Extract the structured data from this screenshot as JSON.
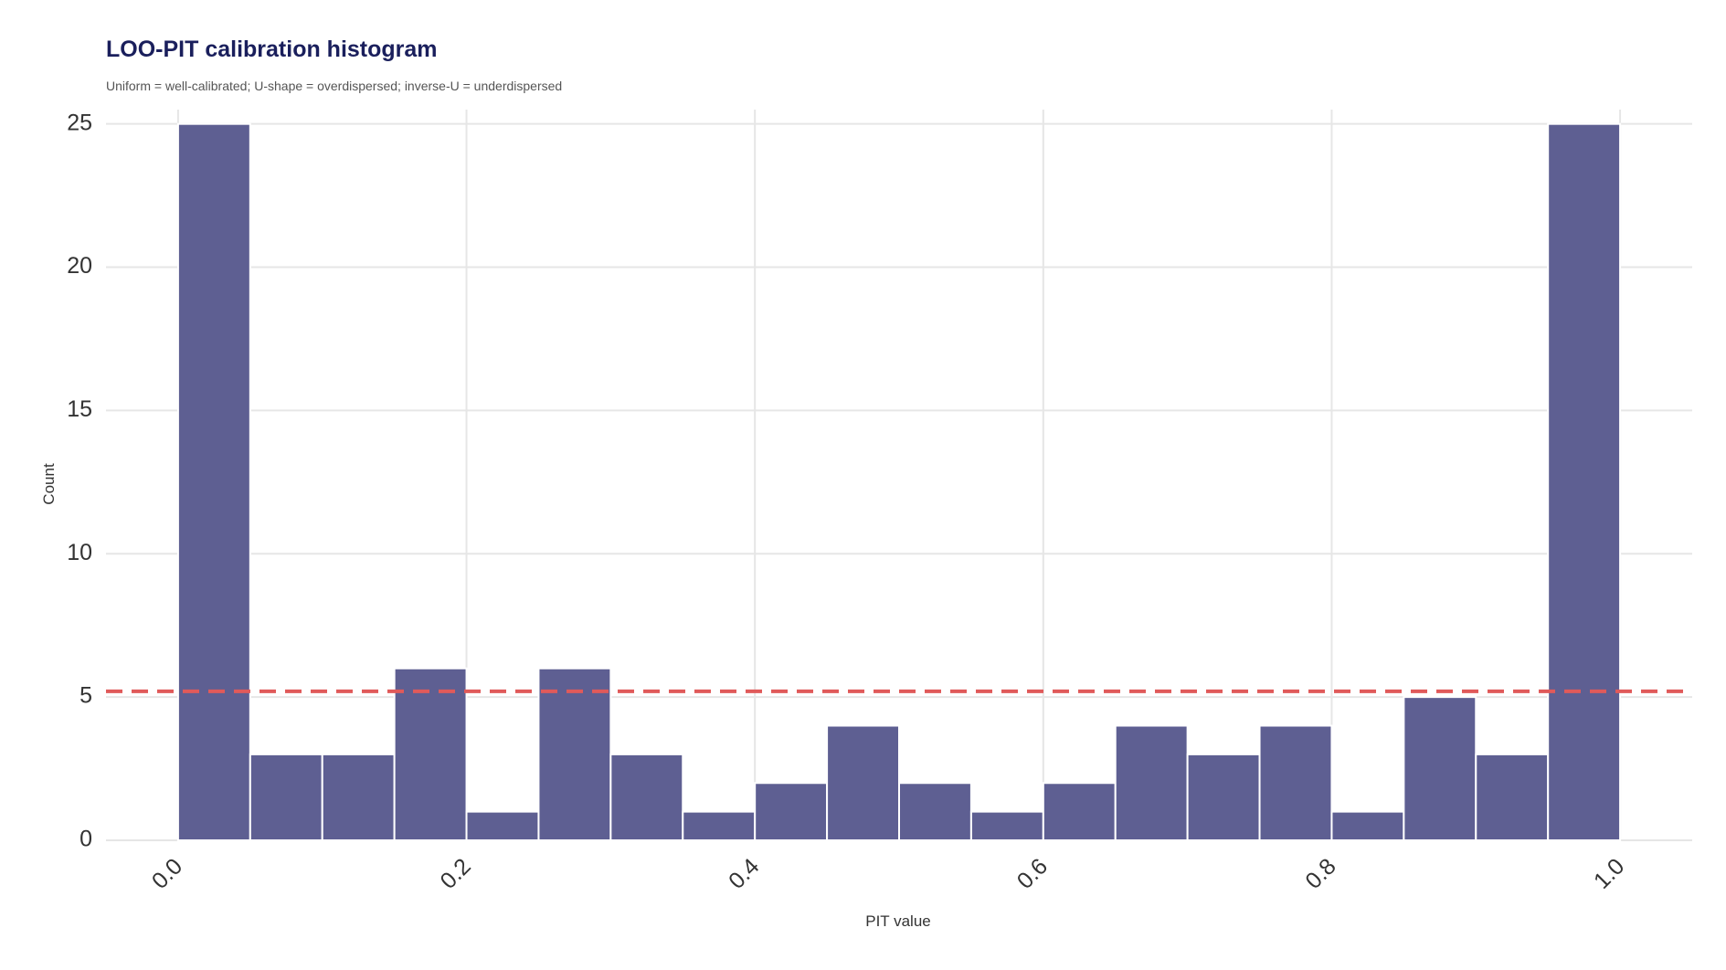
{
  "chart_data": {
    "type": "bar",
    "title": "LOO-PIT calibration histogram",
    "subtitle": "Uniform = well-calibrated; U-shape = overdispersed; inverse-U = underdispersed",
    "xlabel": "PIT value",
    "ylabel": "Count",
    "bin_width": 0.05,
    "bin_starts": [
      0.0,
      0.05,
      0.1,
      0.15,
      0.2,
      0.25,
      0.3,
      0.35,
      0.4,
      0.45,
      0.5,
      0.55,
      0.6,
      0.65,
      0.7,
      0.75,
      0.8,
      0.85,
      0.9,
      0.95
    ],
    "values": [
      25,
      3,
      3,
      6,
      1,
      6,
      3,
      1,
      2,
      4,
      2,
      1,
      2,
      4,
      3,
      4,
      1,
      5,
      3,
      25
    ],
    "reference_line": {
      "y": 5.2,
      "style": "dashed",
      "color": "#e05a5a"
    },
    "xlim": [
      -0.05,
      1.05
    ],
    "ylim": [
      0,
      25.5
    ],
    "x_ticks": [
      "0.0",
      "0.2",
      "0.4",
      "0.6",
      "0.8",
      "1.0"
    ],
    "x_tick_values": [
      0.0,
      0.2,
      0.4,
      0.6,
      0.8,
      1.0
    ],
    "y_ticks": [
      "0",
      "5",
      "10",
      "15",
      "20",
      "25"
    ],
    "y_tick_values": [
      0,
      5,
      10,
      15,
      20,
      25
    ],
    "bar_color": "#5e5f92",
    "grid": true,
    "legend": "none"
  }
}
